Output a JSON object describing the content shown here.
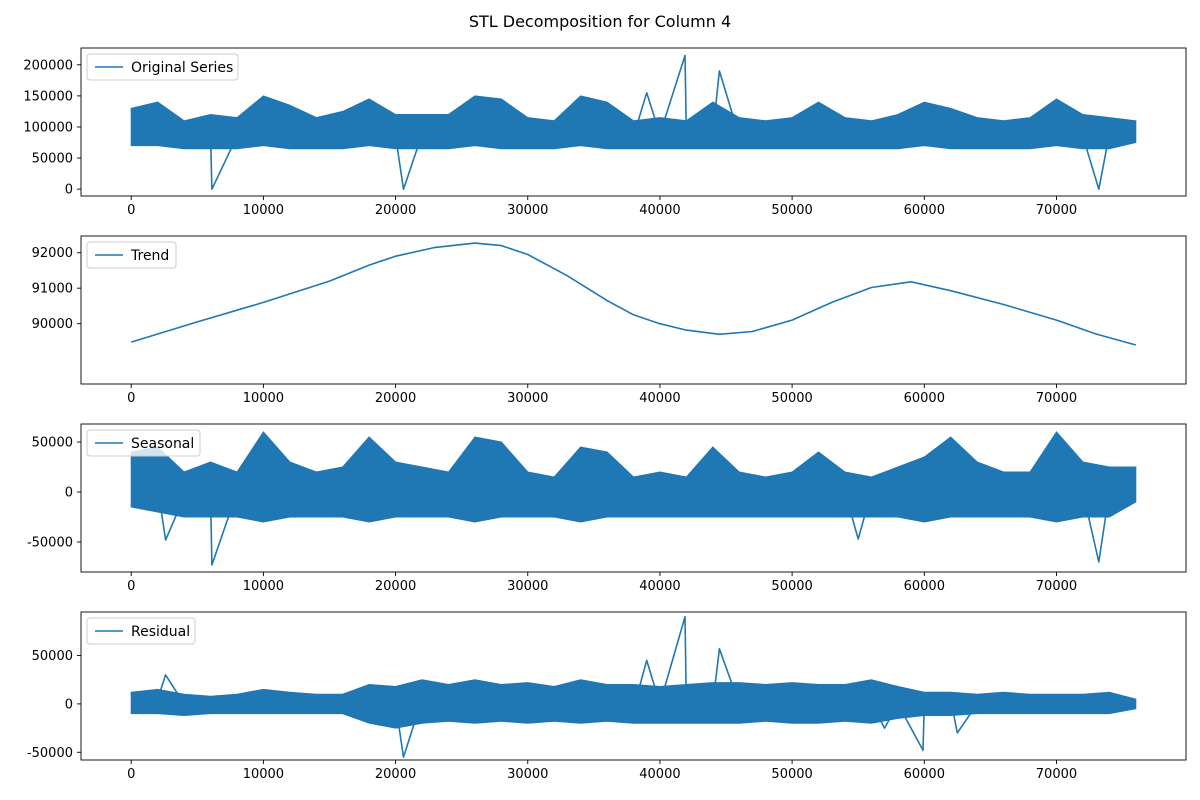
{
  "figure": {
    "title": "STL Decomposition for Column 4",
    "line_color": "#1f77b4"
  },
  "chart_data": [
    {
      "type": "line",
      "series": [
        {
          "name": "Original Series"
        }
      ],
      "legend_position": "top-left",
      "xlim": [
        -3800,
        79800
      ],
      "ylim": [
        -11000,
        227000
      ],
      "x_ticks": [
        0,
        10000,
        20000,
        30000,
        40000,
        50000,
        60000,
        70000
      ],
      "y_ticks": [
        0,
        50000,
        100000,
        150000,
        200000
      ],
      "grid": false,
      "x": [
        0,
        2000,
        4000,
        6000,
        6100,
        8000,
        10000,
        12000,
        14000,
        16000,
        18000,
        20000,
        20600,
        22000,
        24000,
        26000,
        28000,
        30000,
        32000,
        34000,
        36000,
        38000,
        39000,
        40000,
        41900,
        42000,
        44000,
        44500,
        46000,
        48000,
        50000,
        52000,
        54000,
        56000,
        58000,
        60000,
        62000,
        64000,
        66000,
        68000,
        70000,
        72000,
        73200,
        74000,
        76000
      ],
      "y": [
        90000,
        85000,
        80000,
        90000,
        0,
        85000,
        95000,
        88000,
        85000,
        88000,
        92000,
        85000,
        0,
        88000,
        80000,
        95000,
        90000,
        82000,
        88000,
        95000,
        92000,
        85000,
        155000,
        88000,
        215000,
        85000,
        90000,
        190000,
        85000,
        80000,
        92000,
        85000,
        88000,
        92000,
        85000,
        90000,
        85000,
        92000,
        88000,
        85000,
        90000,
        85000,
        0,
        88000,
        85000
      ],
      "envelope": {
        "x": [
          0,
          2000,
          4000,
          6000,
          8000,
          10000,
          12000,
          14000,
          16000,
          18000,
          20000,
          22000,
          24000,
          26000,
          28000,
          30000,
          32000,
          34000,
          36000,
          38000,
          40000,
          42000,
          44000,
          46000,
          48000,
          50000,
          52000,
          54000,
          56000,
          58000,
          60000,
          62000,
          64000,
          66000,
          68000,
          70000,
          72000,
          74000,
          76000
        ],
        "upper": [
          130000,
          140000,
          110000,
          120000,
          115000,
          150000,
          135000,
          115000,
          125000,
          145000,
          120000,
          120000,
          120000,
          150000,
          145000,
          115000,
          110000,
          150000,
          140000,
          110000,
          115000,
          110000,
          140000,
          115000,
          110000,
          115000,
          140000,
          115000,
          110000,
          120000,
          140000,
          130000,
          115000,
          110000,
          115000,
          145000,
          120000,
          115000,
          110000
        ],
        "lower": [
          70000,
          70000,
          65000,
          65000,
          65000,
          70000,
          65000,
          65000,
          65000,
          70000,
          65000,
          65000,
          65000,
          70000,
          65000,
          65000,
          65000,
          70000,
          65000,
          65000,
          65000,
          65000,
          65000,
          65000,
          65000,
          65000,
          65000,
          65000,
          65000,
          65000,
          70000,
          65000,
          65000,
          65000,
          65000,
          70000,
          65000,
          65000,
          75000
        ]
      }
    },
    {
      "type": "line",
      "series": [
        {
          "name": "Trend"
        }
      ],
      "legend_position": "top-left",
      "xlim": [
        -3800,
        79800
      ],
      "ylim": [
        88300,
        92470
      ],
      "x_ticks": [
        0,
        10000,
        20000,
        30000,
        40000,
        50000,
        60000,
        70000
      ],
      "y_ticks": [
        90000,
        91000,
        92000
      ],
      "grid": false,
      "x": [
        0,
        5000,
        10000,
        15000,
        18000,
        20000,
        23000,
        26000,
        28000,
        30000,
        33000,
        36000,
        38000,
        40000,
        42000,
        44500,
        47000,
        50000,
        53000,
        56000,
        59000,
        62000,
        66000,
        70000,
        73000,
        76000
      ],
      "y": [
        89480,
        90050,
        90600,
        91200,
        91650,
        91900,
        92150,
        92270,
        92200,
        91950,
        91350,
        90650,
        90250,
        90000,
        89820,
        89700,
        89780,
        90100,
        90600,
        91020,
        91180,
        90930,
        90540,
        90100,
        89710,
        89400
      ]
    },
    {
      "type": "line",
      "series": [
        {
          "name": "Seasonal"
        }
      ],
      "legend_position": "top-left",
      "xlim": [
        -3800,
        79800
      ],
      "ylim": [
        -80000,
        68000
      ],
      "x_ticks": [
        0,
        10000,
        20000,
        30000,
        40000,
        50000,
        60000,
        70000
      ],
      "y_ticks": [
        -50000,
        0,
        50000
      ],
      "grid": false,
      "x": [
        0,
        2000,
        2600,
        4000,
        6000,
        6100,
        8000,
        10000,
        12000,
        14000,
        16000,
        18000,
        20000,
        22000,
        24000,
        26000,
        28000,
        30000,
        32000,
        34000,
        36000,
        38000,
        40000,
        42000,
        44000,
        46000,
        48000,
        50000,
        52000,
        54000,
        55000,
        56000,
        58000,
        60000,
        62000,
        64000,
        66000,
        68000,
        70000,
        72000,
        73200,
        74000,
        76000
      ],
      "y": [
        0,
        5000,
        -48000,
        -5000,
        0,
        -73000,
        0,
        5000,
        0,
        -5000,
        0,
        5000,
        0,
        0,
        -5000,
        5000,
        0,
        -5000,
        0,
        5000,
        0,
        -5000,
        0,
        0,
        5000,
        0,
        -5000,
        0,
        5000,
        0,
        -47000,
        0,
        5000,
        0,
        5000,
        0,
        -5000,
        0,
        5000,
        0,
        -70000,
        0,
        0
      ],
      "envelope": {
        "x": [
          0,
          2000,
          4000,
          6000,
          8000,
          10000,
          12000,
          14000,
          16000,
          18000,
          20000,
          22000,
          24000,
          26000,
          28000,
          30000,
          32000,
          34000,
          36000,
          38000,
          40000,
          42000,
          44000,
          46000,
          48000,
          50000,
          52000,
          54000,
          56000,
          58000,
          60000,
          62000,
          64000,
          66000,
          68000,
          70000,
          72000,
          74000,
          76000
        ],
        "upper": [
          40000,
          45000,
          20000,
          30000,
          20000,
          60000,
          30000,
          20000,
          25000,
          55000,
          30000,
          25000,
          20000,
          55000,
          50000,
          20000,
          15000,
          45000,
          40000,
          15000,
          20000,
          15000,
          45000,
          20000,
          15000,
          20000,
          40000,
          20000,
          15000,
          25000,
          35000,
          55000,
          30000,
          20000,
          20000,
          60000,
          30000,
          25000,
          25000
        ],
        "lower": [
          -15000,
          -20000,
          -25000,
          -25000,
          -25000,
          -30000,
          -25000,
          -25000,
          -25000,
          -30000,
          -25000,
          -25000,
          -25000,
          -30000,
          -25000,
          -25000,
          -25000,
          -30000,
          -25000,
          -25000,
          -25000,
          -25000,
          -25000,
          -25000,
          -25000,
          -25000,
          -25000,
          -25000,
          -25000,
          -25000,
          -30000,
          -25000,
          -25000,
          -25000,
          -25000,
          -30000,
          -25000,
          -25000,
          -10000
        ]
      }
    },
    {
      "type": "line",
      "series": [
        {
          "name": "Residual"
        }
      ],
      "legend_position": "top-left",
      "xlim": [
        -3800,
        79800
      ],
      "ylim": [
        -58000,
        95000
      ],
      "x_ticks": [
        0,
        10000,
        20000,
        30000,
        40000,
        50000,
        60000,
        70000
      ],
      "y_ticks": [
        -50000,
        0,
        50000
      ],
      "grid": false,
      "x": [
        0,
        2000,
        2600,
        4000,
        6000,
        8000,
        10000,
        12000,
        14000,
        16000,
        18000,
        20000,
        20600,
        22000,
        24000,
        26000,
        28000,
        30000,
        32000,
        34000,
        36000,
        38000,
        39000,
        40000,
        41900,
        42000,
        44000,
        44500,
        46000,
        48000,
        50000,
        52000,
        54000,
        56000,
        57000,
        58000,
        59900,
        60000,
        62000,
        62500,
        64000,
        66000,
        68000,
        70000,
        72000,
        74000,
        76000
      ],
      "y": [
        0,
        5000,
        30000,
        0,
        -5000,
        0,
        5000,
        0,
        -5000,
        0,
        5000,
        0,
        -55000,
        5000,
        0,
        5000,
        0,
        -5000,
        0,
        5000,
        0,
        -5000,
        45000,
        0,
        90000,
        -5000,
        0,
        57000,
        0,
        -5000,
        5000,
        0,
        -5000,
        0,
        -25000,
        0,
        -48000,
        0,
        5000,
        -30000,
        0,
        5000,
        0,
        -5000,
        5000,
        0,
        0
      ],
      "envelope": {
        "x": [
          0,
          2000,
          4000,
          6000,
          8000,
          10000,
          12000,
          14000,
          16000,
          18000,
          20000,
          22000,
          24000,
          26000,
          28000,
          30000,
          32000,
          34000,
          36000,
          38000,
          40000,
          42000,
          44000,
          46000,
          48000,
          50000,
          52000,
          54000,
          56000,
          58000,
          60000,
          62000,
          64000,
          66000,
          68000,
          70000,
          72000,
          74000,
          76000
        ],
        "upper": [
          12000,
          15000,
          10000,
          8000,
          10000,
          15000,
          12000,
          10000,
          10000,
          20000,
          18000,
          25000,
          20000,
          25000,
          20000,
          22000,
          18000,
          25000,
          20000,
          20000,
          18000,
          20000,
          22000,
          22000,
          20000,
          22000,
          20000,
          20000,
          25000,
          18000,
          12000,
          12000,
          10000,
          12000,
          10000,
          10000,
          10000,
          12000,
          5000
        ],
        "lower": [
          -10000,
          -10000,
          -12000,
          -10000,
          -10000,
          -10000,
          -10000,
          -10000,
          -10000,
          -20000,
          -25000,
          -20000,
          -18000,
          -20000,
          -18000,
          -20000,
          -18000,
          -20000,
          -18000,
          -20000,
          -20000,
          -20000,
          -20000,
          -20000,
          -18000,
          -20000,
          -20000,
          -18000,
          -20000,
          -15000,
          -12000,
          -12000,
          -10000,
          -10000,
          -10000,
          -10000,
          -10000,
          -10000,
          -5000
        ]
      }
    }
  ]
}
